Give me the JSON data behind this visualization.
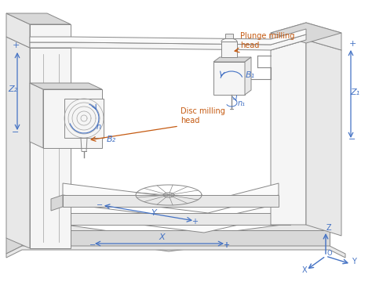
{
  "bg_color": "#ffffff",
  "line_color": "#a0a0a0",
  "line_color2": "#888888",
  "blue_color": "#4472c4",
  "orange_color": "#c55a11",
  "face_light": "#f5f5f5",
  "face_mid": "#e8e8e8",
  "face_dark": "#d8d8d8",
  "face_white": "#fafafa",
  "labels": {
    "Z2": "Z₂",
    "Z1": "Z₁",
    "B2": "B₂",
    "B1": "B₁",
    "n1": "n₁",
    "n2": "n",
    "X": "X",
    "Y": "Y",
    "Z": "Z",
    "O": "O",
    "plunge": "Plunge milling\nhead",
    "disc": "Disc milling\nhead"
  },
  "figsize": [
    4.74,
    3.69
  ],
  "dpi": 100
}
